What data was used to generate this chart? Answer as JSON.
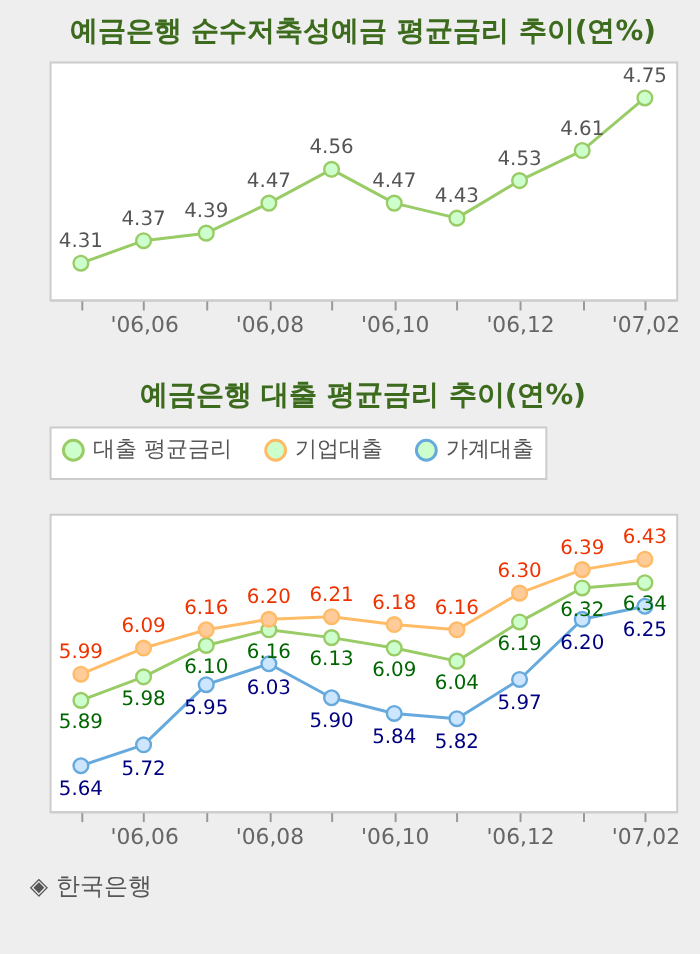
{
  "chart_data": [
    {
      "type": "line",
      "title": "예금은행 순수저축성예금 평균금리 추이(연%)",
      "categories": [
        null,
        "'06,06",
        null,
        "'06,08",
        null,
        "'06,10",
        null,
        "'06,12",
        null,
        "'07,02"
      ],
      "values": [
        4.31,
        4.37,
        4.39,
        4.47,
        4.56,
        4.47,
        4.43,
        4.53,
        4.61,
        4.75
      ],
      "color": "#99cc66",
      "data_labels": true,
      "marker": "circle",
      "grid": false,
      "tick_labels": "x"
    },
    {
      "type": "line",
      "title": "예금은행 대출 평균금리 추이(연%)",
      "categories": [
        null,
        "'06,06",
        null,
        "'06,08",
        null,
        "'06,10",
        null,
        "'06,12",
        null,
        "'07,02"
      ],
      "series": [
        {
          "name": "대출 평균금리",
          "color": "#99cc66",
          "values": [
            5.89,
            5.98,
            6.1,
            6.16,
            6.13,
            6.09,
            6.04,
            6.19,
            6.32,
            6.34
          ],
          "value_labels": [
            "5.89",
            "5.98",
            "6.10",
            "6.16",
            "6.13",
            "6.09",
            "6.04",
            "6.19",
            "6.32",
            "6.34"
          ]
        },
        {
          "name": "기업대출",
          "color": "#ffbb66",
          "values": [
            5.99,
            6.09,
            6.16,
            6.2,
            6.21,
            6.18,
            6.16,
            6.3,
            6.39,
            6.43
          ],
          "value_labels": [
            "5.99",
            "6.09",
            "6.16",
            "6.20",
            "6.21",
            "6.18",
            "6.16",
            "6.30",
            "6.39",
            "6.43"
          ]
        },
        {
          "name": "가계대출",
          "color": "#66aadd",
          "values": [
            5.64,
            5.72,
            5.95,
            6.03,
            5.9,
            5.84,
            5.82,
            5.97,
            6.2,
            6.25
          ],
          "value_labels": [
            "5.64",
            "5.72",
            "5.95",
            "6.03",
            "5.90",
            "5.84",
            "5.82",
            "5.97",
            "6.20",
            "6.25"
          ]
        }
      ],
      "marker": "circle",
      "grid": false,
      "legend": "top",
      "tick_labels": "x",
      "annotations": [
        "◈ 한국은행"
      ]
    }
  ]
}
